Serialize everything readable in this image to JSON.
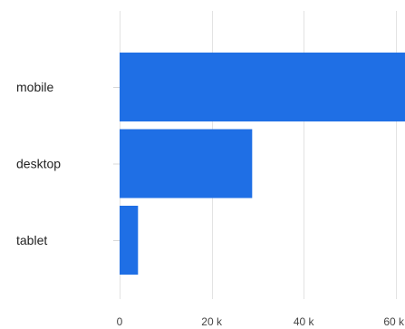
{
  "chart_data": {
    "type": "bar",
    "orientation": "horizontal",
    "categories": [
      "mobile",
      "desktop",
      "tablet"
    ],
    "values": [
      62000,
      28800,
      4000
    ],
    "xlim": [
      0,
      62000
    ],
    "x_ticks": [
      0,
      20000,
      40000,
      60000
    ],
    "x_tick_labels": [
      "0",
      "20 k",
      "40 k",
      "60 k"
    ],
    "grid": "vertical",
    "bar_color": "#1f6fe5"
  }
}
